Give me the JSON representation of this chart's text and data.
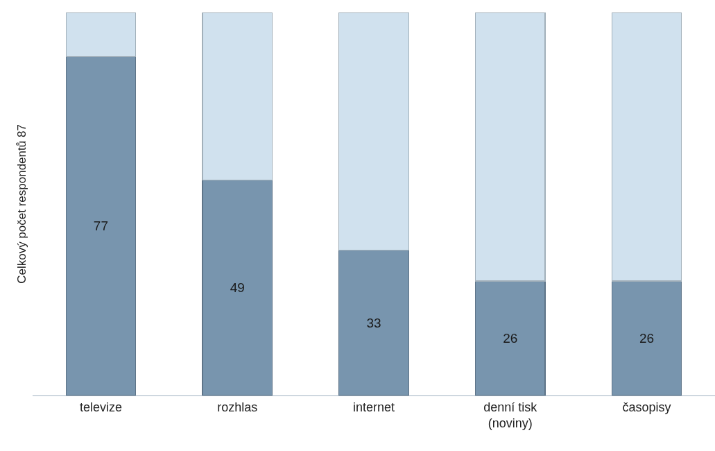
{
  "chart_data": {
    "type": "bar",
    "ylabel": "Celkový počet respondentů 87",
    "categories": [
      "televize",
      "rozhlas",
      "internet",
      "denní tisk\n(noviny)",
      "časopisy"
    ],
    "stacked": true,
    "ylim": [
      0,
      87
    ],
    "tick_labels": "x",
    "series": [
      {
        "color": "#7895ae",
        "values": [
          77,
          49,
          33,
          26,
          26
        ],
        "value_labels": [
          "77",
          "49",
          "33",
          "26",
          "26"
        ]
      },
      {
        "color": "#d0e1ee",
        "values": [
          10,
          38,
          54,
          61,
          61
        ]
      }
    ]
  }
}
